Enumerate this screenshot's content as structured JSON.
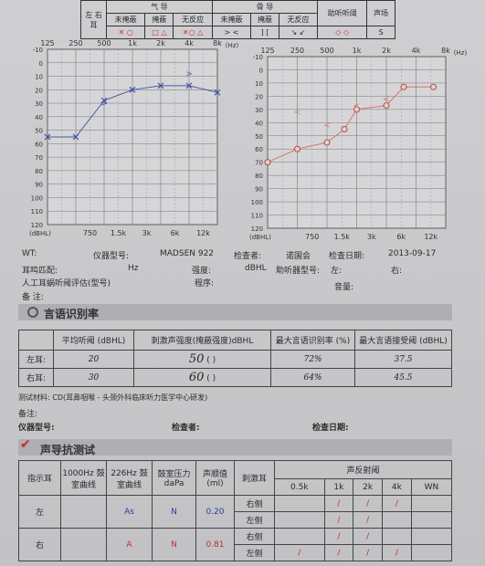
{
  "legend": {
    "title_air": "气 导",
    "title_bone": "骨 导",
    "left_ear": "左 右耳",
    "air": [
      {
        "label": "未掩蔽",
        "sym": "✕ ○"
      },
      {
        "label": "掩蔽",
        "sym": "□ △"
      },
      {
        "label": "无反应",
        "sym": "✕○ △"
      }
    ],
    "bone": [
      {
        "label": "未掩蔽",
        "sym": "> <"
      },
      {
        "label": "掩蔽",
        "sym": "] ["
      },
      {
        "label": "无反应",
        "sym": "↘ ↙"
      }
    ],
    "aided": "助听听阈",
    "aided_sym": "◇ ◇",
    "field": "声场",
    "field_sym": "S"
  },
  "audiogram": {
    "hz_label": "(Hz)",
    "unit": "(dBHL)",
    "freq_top": [
      "125",
      "250",
      "500",
      "1k",
      "2k",
      "4k",
      "8k"
    ],
    "freq_bottom": [
      "750",
      "1.5k",
      "3k",
      "6k",
      "12k"
    ],
    "db": [
      "-10",
      "0",
      "10",
      "20",
      "30",
      "40",
      "50",
      "60",
      "70",
      "80",
      "90",
      "100",
      "110",
      "120"
    ],
    "left_ear_points": [
      [
        125,
        55
      ],
      [
        250,
        55
      ],
      [
        500,
        28
      ],
      [
        1000,
        20
      ],
      [
        2000,
        17
      ],
      [
        4000,
        17
      ],
      [
        8000,
        22
      ]
    ],
    "right_ear_points": [
      [
        125,
        70
      ],
      [
        250,
        60
      ],
      [
        500,
        55
      ],
      [
        750,
        45
      ],
      [
        1000,
        30
      ],
      [
        2000,
        27
      ],
      [
        3000,
        13
      ],
      [
        6000,
        13
      ]
    ],
    "left_bone": [
      [
        500,
        30
      ],
      [
        4000,
        8
      ]
    ],
    "right_bone": [
      [
        250,
        32
      ],
      [
        500,
        42
      ],
      [
        1000,
        27
      ],
      [
        2000,
        22
      ]
    ]
  },
  "info": {
    "wt_label": "WT:",
    "device_label": "仪器型号:",
    "device": "MADSEN 922",
    "examiner_label": "检查者:",
    "examiner": "诺国会",
    "date_label": "检查日期:",
    "date": "2013-09-17",
    "tinnitus_label": "耳鸣匹配:",
    "hz": "Hz",
    "intensity_label": "强度:",
    "dbhl": "dBHL",
    "hearing_aid_label": "助听器型号:",
    "left": "左:",
    "right": "右:",
    "cochlear_label": "人工耳蜗听阈评估(型号)",
    "program_label": "程序:",
    "volume_label": "音量:",
    "remark_label": "备 注:"
  },
  "speech": {
    "title": "言语识别率",
    "headers": [
      "平均听阈 (dBHL)",
      "刺激声强度(掩蔽强度)dBHL",
      "最大言语识别率 (%)",
      "最大言语接受阈 (dBHL)"
    ],
    "rows": [
      {
        "ear": "左耳:",
        "avg": "20",
        "stim": "50",
        "mask": "(            )",
        "max_rate": "72%",
        "max_accept": "37.5"
      },
      {
        "ear": "右耳:",
        "avg": "30",
        "stim": "60",
        "mask": "(            )",
        "max_rate": "64%",
        "max_accept": "45.5"
      }
    ],
    "material": "测试材料: CD(耳鼻咽喉 - 头颈外科临床听力医学中心研发)",
    "remark": "备注:",
    "device_label": "仪器型号:",
    "examiner_label": "检查者:",
    "date_label": "检查日期:"
  },
  "impedance": {
    "title": "声导抗测试",
    "headers": [
      "指示耳",
      "1000Hz 鼓室曲线",
      "226Hz 鼓室曲线",
      "鼓室压力 daPa",
      "声顺值 (ml)",
      "刺激耳"
    ],
    "reflex_title": "声反射阈",
    "reflex_freqs": [
      "0.5k",
      "1k",
      "2k",
      "4k",
      "WN"
    ],
    "rows": [
      {
        "ear": "左",
        "c1000": "",
        "c226": "As",
        "pressure": "N",
        "compliance": "0.20",
        "sides": [
          "右侧",
          "左侧"
        ]
      },
      {
        "ear": "右",
        "c1000": "",
        "c226": "A",
        "pressure": "N",
        "compliance": "0.81",
        "sides": [
          "右侧",
          "左侧"
        ]
      }
    ],
    "slash": "/",
    "colors": {
      "left": "#2b3e9a",
      "right": "#c82b2b"
    }
  }
}
